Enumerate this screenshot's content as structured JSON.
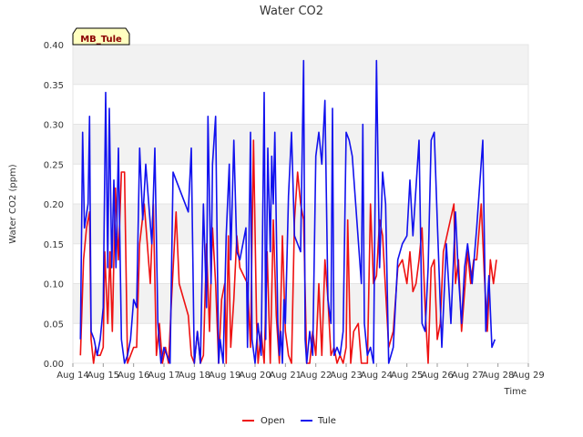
{
  "chart_data": {
    "type": "line",
    "title": "Water CO2",
    "xlabel": "Time",
    "ylabel": "Water CO2 (ppm)",
    "site_tag": "MB_Tule",
    "ylim": [
      0,
      0.4
    ],
    "xlim": [
      14,
      29
    ],
    "y_ticks": [
      0.0,
      0.05,
      0.1,
      0.15,
      0.2,
      0.25,
      0.3,
      0.35,
      0.4
    ],
    "y_tick_labels": [
      "0.00",
      "0.05",
      "0.10",
      "0.15",
      "0.20",
      "0.25",
      "0.30",
      "0.35",
      "0.40"
    ],
    "x_ticks": [
      14,
      15,
      16,
      17,
      18,
      19,
      20,
      21,
      22,
      23,
      24,
      25,
      26,
      27,
      28,
      29
    ],
    "x_tick_labels": [
      "Aug 14",
      "Aug 15",
      "Aug 16",
      "Aug 17",
      "Aug 18",
      "Aug 19",
      "Aug 20",
      "Aug 21",
      "Aug 22",
      "Aug 23",
      "Aug 24",
      "Aug 25",
      "Aug 26",
      "Aug 27",
      "Aug 28",
      "Aug 29"
    ],
    "legend": {
      "placement": "bottom-center"
    },
    "series": [
      {
        "name": "Open",
        "color": "#ee1111",
        "points": [
          [
            14.25,
            0.01
          ],
          [
            14.35,
            0.13
          ],
          [
            14.45,
            0.17
          ],
          [
            14.55,
            0.19
          ],
          [
            14.6,
            0.03
          ],
          [
            14.68,
            0.0
          ],
          [
            14.75,
            0.02
          ],
          [
            14.8,
            0.01
          ],
          [
            14.9,
            0.01
          ],
          [
            15.0,
            0.02
          ],
          [
            15.05,
            0.14
          ],
          [
            15.15,
            0.05
          ],
          [
            15.22,
            0.14
          ],
          [
            15.3,
            0.04
          ],
          [
            15.4,
            0.22
          ],
          [
            15.5,
            0.13
          ],
          [
            15.6,
            0.24
          ],
          [
            15.7,
            0.24
          ],
          [
            15.8,
            0.0
          ],
          [
            15.9,
            0.01
          ],
          [
            16.0,
            0.02
          ],
          [
            16.1,
            0.02
          ],
          [
            16.2,
            0.15
          ],
          [
            16.35,
            0.2
          ],
          [
            16.45,
            0.15
          ],
          [
            16.55,
            0.1
          ],
          [
            16.65,
            0.2
          ],
          [
            16.75,
            0.01
          ],
          [
            16.85,
            0.05
          ],
          [
            16.95,
            0.0
          ],
          [
            17.05,
            0.02
          ],
          [
            17.15,
            0.0
          ],
          [
            17.25,
            0.08
          ],
          [
            17.4,
            0.19
          ],
          [
            17.5,
            0.1
          ],
          [
            17.8,
            0.06
          ],
          [
            17.9,
            0.01
          ],
          [
            18.0,
            0.0
          ],
          [
            18.1,
            0.04
          ],
          [
            18.2,
            0.0
          ],
          [
            18.3,
            0.01
          ],
          [
            18.4,
            0.15
          ],
          [
            18.5,
            0.04
          ],
          [
            18.6,
            0.17
          ],
          [
            18.7,
            0.1
          ],
          [
            18.8,
            0.0
          ],
          [
            18.9,
            0.08
          ],
          [
            19.0,
            0.1
          ],
          [
            19.05,
            0.0
          ],
          [
            19.12,
            0.16
          ],
          [
            19.2,
            0.02
          ],
          [
            19.3,
            0.08
          ],
          [
            19.4,
            0.16
          ],
          [
            19.5,
            0.12
          ],
          [
            19.75,
            0.1
          ],
          [
            19.85,
            0.02
          ],
          [
            19.95,
            0.28
          ],
          [
            20.05,
            0.05
          ],
          [
            20.1,
            0.0
          ],
          [
            20.2,
            0.04
          ],
          [
            20.3,
            0.0
          ],
          [
            20.4,
            0.14
          ],
          [
            20.5,
            0.0
          ],
          [
            20.6,
            0.18
          ],
          [
            20.7,
            0.06
          ],
          [
            20.8,
            0.0
          ],
          [
            20.9,
            0.16
          ],
          [
            21.0,
            0.04
          ],
          [
            21.1,
            0.01
          ],
          [
            21.2,
            0.0
          ],
          [
            21.3,
            0.18
          ],
          [
            21.4,
            0.24
          ],
          [
            21.5,
            0.2
          ],
          [
            21.6,
            0.18
          ],
          [
            21.7,
            0.0
          ],
          [
            21.8,
            0.0
          ],
          [
            21.9,
            0.04
          ],
          [
            22.0,
            0.01
          ],
          [
            22.1,
            0.1
          ],
          [
            22.2,
            0.01
          ],
          [
            22.3,
            0.13
          ],
          [
            22.4,
            0.08
          ],
          [
            22.5,
            0.01
          ],
          [
            22.6,
            0.02
          ],
          [
            22.7,
            0.0
          ],
          [
            22.8,
            0.01
          ],
          [
            22.9,
            0.0
          ],
          [
            23.0,
            0.02
          ],
          [
            23.05,
            0.18
          ],
          [
            23.15,
            0.0
          ],
          [
            23.25,
            0.04
          ],
          [
            23.4,
            0.05
          ],
          [
            23.5,
            0.0
          ],
          [
            23.6,
            0.0
          ],
          [
            23.7,
            0.0
          ],
          [
            23.8,
            0.2
          ],
          [
            23.9,
            0.1
          ],
          [
            24.0,
            0.11
          ],
          [
            24.1,
            0.18
          ],
          [
            24.2,
            0.16
          ],
          [
            24.4,
            0.02
          ],
          [
            24.55,
            0.04
          ],
          [
            24.7,
            0.12
          ],
          [
            24.85,
            0.13
          ],
          [
            25.0,
            0.1
          ],
          [
            25.1,
            0.14
          ],
          [
            25.2,
            0.09
          ],
          [
            25.3,
            0.1
          ],
          [
            25.4,
            0.13
          ],
          [
            25.5,
            0.17
          ],
          [
            25.6,
            0.07
          ],
          [
            25.7,
            0.0
          ],
          [
            25.8,
            0.12
          ],
          [
            25.9,
            0.13
          ],
          [
            26.0,
            0.03
          ],
          [
            26.1,
            0.05
          ],
          [
            26.2,
            0.14
          ],
          [
            26.55,
            0.2
          ],
          [
            26.6,
            0.1
          ],
          [
            26.7,
            0.13
          ],
          [
            26.8,
            0.04
          ],
          [
            26.9,
            0.09
          ],
          [
            27.0,
            0.14
          ],
          [
            27.1,
            0.1
          ],
          [
            27.2,
            0.13
          ],
          [
            27.3,
            0.13
          ],
          [
            27.45,
            0.2
          ],
          [
            27.55,
            0.11
          ],
          [
            27.65,
            0.04
          ],
          [
            27.75,
            0.13
          ],
          [
            27.85,
            0.1
          ],
          [
            27.95,
            0.13
          ]
        ]
      },
      {
        "name": "Tule",
        "color": "#1111ee",
        "points": [
          [
            14.25,
            0.03
          ],
          [
            14.32,
            0.29
          ],
          [
            14.38,
            0.17
          ],
          [
            14.5,
            0.2
          ],
          [
            14.55,
            0.31
          ],
          [
            14.6,
            0.04
          ],
          [
            14.7,
            0.03
          ],
          [
            14.8,
            0.01
          ],
          [
            14.9,
            0.03
          ],
          [
            15.0,
            0.07
          ],
          [
            15.08,
            0.34
          ],
          [
            15.15,
            0.12
          ],
          [
            15.2,
            0.32
          ],
          [
            15.28,
            0.12
          ],
          [
            15.35,
            0.23
          ],
          [
            15.42,
            0.12
          ],
          [
            15.5,
            0.27
          ],
          [
            15.6,
            0.03
          ],
          [
            15.7,
            0.0
          ],
          [
            15.8,
            0.01
          ],
          [
            15.9,
            0.03
          ],
          [
            16.0,
            0.08
          ],
          [
            16.1,
            0.07
          ],
          [
            16.2,
            0.27
          ],
          [
            16.3,
            0.18
          ],
          [
            16.4,
            0.25
          ],
          [
            16.5,
            0.2
          ],
          [
            16.6,
            0.15
          ],
          [
            16.7,
            0.27
          ],
          [
            16.8,
            0.05
          ],
          [
            16.9,
            0.0
          ],
          [
            17.0,
            0.02
          ],
          [
            17.1,
            0.01
          ],
          [
            17.2,
            0.0
          ],
          [
            17.3,
            0.24
          ],
          [
            17.4,
            0.23
          ],
          [
            17.8,
            0.19
          ],
          [
            17.9,
            0.27
          ],
          [
            18.0,
            0.0
          ],
          [
            18.1,
            0.04
          ],
          [
            18.2,
            0.0
          ],
          [
            18.3,
            0.2
          ],
          [
            18.4,
            0.07
          ],
          [
            18.45,
            0.31
          ],
          [
            18.55,
            0.1
          ],
          [
            18.6,
            0.25
          ],
          [
            18.7,
            0.31
          ],
          [
            18.8,
            0.0
          ],
          [
            18.85,
            0.03
          ],
          [
            18.95,
            0.0
          ],
          [
            19.05,
            0.16
          ],
          [
            19.15,
            0.25
          ],
          [
            19.2,
            0.13
          ],
          [
            19.3,
            0.28
          ],
          [
            19.4,
            0.14
          ],
          [
            19.5,
            0.13
          ],
          [
            19.7,
            0.17
          ],
          [
            19.75,
            0.02
          ],
          [
            19.85,
            0.29
          ],
          [
            19.9,
            0.03
          ],
          [
            20.0,
            0.0
          ],
          [
            20.1,
            0.05
          ],
          [
            20.2,
            0.01
          ],
          [
            20.3,
            0.34
          ],
          [
            20.35,
            0.03
          ],
          [
            20.42,
            0.27
          ],
          [
            20.5,
            0.14
          ],
          [
            20.55,
            0.26
          ],
          [
            20.6,
            0.2
          ],
          [
            20.65,
            0.29
          ],
          [
            20.75,
            0.05
          ],
          [
            20.8,
            0.01
          ],
          [
            20.85,
            0.04
          ],
          [
            20.9,
            0.0
          ],
          [
            20.95,
            0.08
          ],
          [
            21.0,
            0.05
          ],
          [
            21.1,
            0.21
          ],
          [
            21.2,
            0.29
          ],
          [
            21.3,
            0.16
          ],
          [
            21.5,
            0.14
          ],
          [
            21.6,
            0.38
          ],
          [
            21.65,
            0.03
          ],
          [
            21.7,
            0.0
          ],
          [
            21.8,
            0.04
          ],
          [
            21.9,
            0.01
          ],
          [
            22.0,
            0.26
          ],
          [
            22.1,
            0.29
          ],
          [
            22.2,
            0.25
          ],
          [
            22.3,
            0.33
          ],
          [
            22.4,
            0.08
          ],
          [
            22.5,
            0.05
          ],
          [
            22.55,
            0.32
          ],
          [
            22.6,
            0.01
          ],
          [
            22.7,
            0.02
          ],
          [
            22.8,
            0.01
          ],
          [
            22.9,
            0.04
          ],
          [
            23.0,
            0.29
          ],
          [
            23.1,
            0.28
          ],
          [
            23.2,
            0.26
          ],
          [
            23.5,
            0.1
          ],
          [
            23.55,
            0.3
          ],
          [
            23.6,
            0.05
          ],
          [
            23.7,
            0.01
          ],
          [
            23.8,
            0.02
          ],
          [
            23.9,
            0.0
          ],
          [
            24.0,
            0.38
          ],
          [
            24.1,
            0.12
          ],
          [
            24.2,
            0.24
          ],
          [
            24.3,
            0.2
          ],
          [
            24.4,
            0.0
          ],
          [
            24.55,
            0.02
          ],
          [
            24.7,
            0.13
          ],
          [
            24.85,
            0.15
          ],
          [
            25.0,
            0.16
          ],
          [
            25.1,
            0.23
          ],
          [
            25.2,
            0.16
          ],
          [
            25.4,
            0.28
          ],
          [
            25.5,
            0.05
          ],
          [
            25.6,
            0.04
          ],
          [
            25.7,
            0.12
          ],
          [
            25.8,
            0.28
          ],
          [
            25.9,
            0.29
          ],
          [
            26.0,
            0.18
          ],
          [
            26.15,
            0.02
          ],
          [
            26.3,
            0.15
          ],
          [
            26.45,
            0.05
          ],
          [
            26.6,
            0.19
          ],
          [
            26.7,
            0.11
          ],
          [
            26.8,
            0.05
          ],
          [
            26.9,
            0.12
          ],
          [
            27.0,
            0.15
          ],
          [
            27.15,
            0.1
          ],
          [
            27.3,
            0.17
          ],
          [
            27.5,
            0.28
          ],
          [
            27.6,
            0.04
          ],
          [
            27.7,
            0.11
          ],
          [
            27.8,
            0.02
          ],
          [
            27.9,
            0.03
          ]
        ]
      }
    ]
  }
}
